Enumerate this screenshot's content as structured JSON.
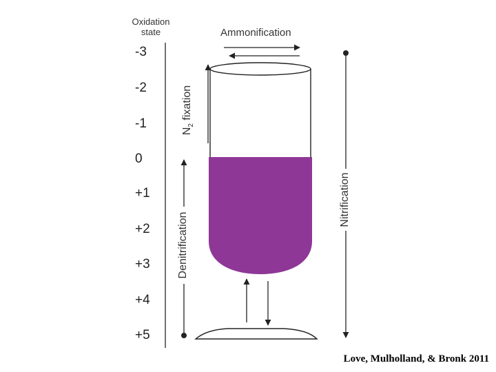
{
  "axis": {
    "title_line1": "Oxidation",
    "title_line2": "state",
    "ticks": [
      "-3",
      "-2",
      "-1",
      "0",
      "+1",
      "+2",
      "+3",
      "+4",
      "+5"
    ]
  },
  "processes": {
    "ammonification": "Ammonification",
    "n2_fixation_base": "N",
    "n2_fixation_sub": "2",
    "n2_fixation_rest": " fixation",
    "denitrification": "Denitrification",
    "nitrification": "Nitrification"
  },
  "colors": {
    "fill": "#8e3797",
    "line": "#222222"
  },
  "citation": "Love, Mulholland, & Bronk 2011"
}
